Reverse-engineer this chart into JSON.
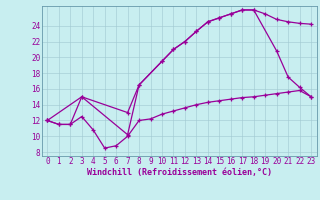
{
  "xlabel": "Windchill (Refroidissement éolien,°C)",
  "bg_color": "#c8eef0",
  "line_color": "#990099",
  "xlim": [
    -0.5,
    23.5
  ],
  "ylim": [
    7.5,
    26.5
  ],
  "xticks": [
    0,
    1,
    2,
    3,
    4,
    5,
    6,
    7,
    8,
    9,
    10,
    11,
    12,
    13,
    14,
    15,
    16,
    17,
    18,
    19,
    20,
    21,
    22,
    23
  ],
  "yticks": [
    8,
    10,
    12,
    14,
    16,
    18,
    20,
    22,
    24
  ],
  "series1_x": [
    0,
    1,
    2,
    3,
    4,
    5,
    6,
    7,
    8,
    9,
    10,
    11,
    12,
    13,
    14,
    15,
    16,
    17,
    18,
    19,
    20,
    21,
    22,
    23
  ],
  "series1_y": [
    12,
    11.5,
    11.5,
    12.5,
    10.8,
    8.5,
    8.8,
    10.0,
    12.0,
    12.2,
    12.8,
    13.2,
    13.6,
    14.0,
    14.3,
    14.5,
    14.7,
    14.9,
    15.0,
    15.2,
    15.4,
    15.6,
    15.8,
    15.0
  ],
  "series2_x": [
    0,
    1,
    2,
    3,
    7,
    8,
    10,
    11,
    12,
    13,
    14,
    15,
    16,
    17,
    18,
    19,
    20,
    21,
    22,
    23
  ],
  "series2_y": [
    12,
    11.5,
    11.5,
    15.0,
    13.0,
    16.5,
    19.5,
    21.0,
    22.0,
    23.3,
    24.5,
    25.0,
    25.5,
    26.0,
    26.0,
    25.5,
    24.8,
    24.5,
    24.3,
    24.2
  ],
  "series3_x": [
    0,
    3,
    7,
    8,
    10,
    11,
    12,
    13,
    14,
    15,
    16,
    17,
    18,
    20,
    21,
    22,
    23
  ],
  "series3_y": [
    12,
    15.0,
    10.2,
    16.5,
    19.5,
    21.0,
    22.0,
    23.3,
    24.5,
    25.0,
    25.5,
    26.0,
    26.0,
    20.8,
    17.5,
    16.2,
    15.0
  ],
  "tick_fontsize": 5.5,
  "xlabel_fontsize": 6
}
